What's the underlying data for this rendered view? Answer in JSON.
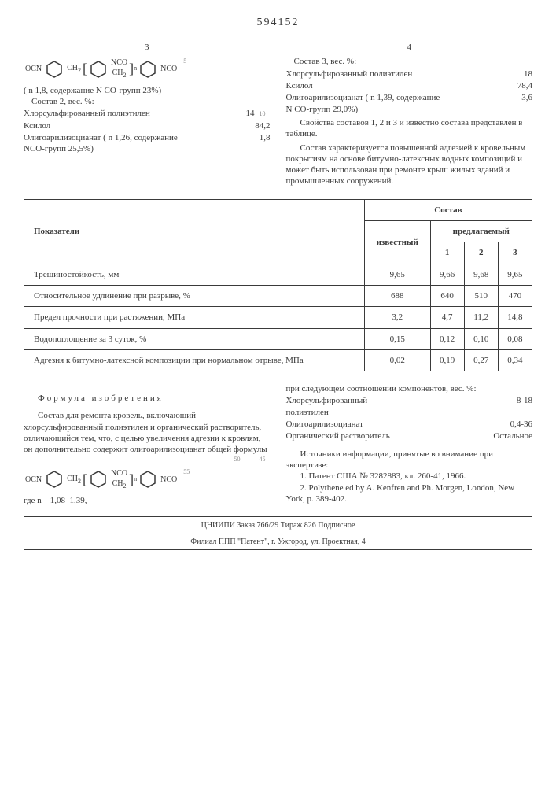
{
  "doc_number": "594152",
  "col_left_num": "3",
  "col_right_num": "4",
  "chem": {
    "OCN": "OCN",
    "CH2": "CH",
    "NCO": "NCO",
    "n_sub": "n"
  },
  "left": {
    "note1": "( n 1,8, содержание N СО-групп 23%)",
    "comp2_title": "Состав 2, вес. %:",
    "rows": [
      {
        "label": "Хлорсульфированный полиэтилен",
        "val": "14"
      },
      {
        "label": "Ксилол",
        "val": "84,2"
      },
      {
        "label": "Олигоарилизоцианат ( n 1,26, содержание NCO-групп 25,5%)",
        "val": "1,8"
      }
    ]
  },
  "right": {
    "comp3_title": "Состав 3, вес. %:",
    "rows": [
      {
        "label": "Хлорсульфированный полиэтилен",
        "val": "18"
      },
      {
        "label": "Ксилол",
        "val": "78,4"
      },
      {
        "label": "Олигоарилизоцианат ( n 1,39, содержание N СО-групп 29,0%)",
        "val": "3,6"
      }
    ],
    "para1": "Свойства составов 1, 2 и 3 и известно состава представлен в таблице.",
    "para2": "Состав характеризуется повышенной адгезией к кровельным покрытиям на основе битумно-латексных водных композиций и может быть использован при ремонте крыш жилых зданий и промышленных сооружений."
  },
  "table": {
    "h_indicator": "Показатели",
    "h_compos": "Состав",
    "h_known": "известный",
    "h_proposed": "предлагаемый",
    "h1": "1",
    "h2": "2",
    "h3": "3",
    "rows": [
      {
        "label": "Трещиностойкость, мм",
        "known": "9,65",
        "v1": "9,66",
        "v2": "9,68",
        "v3": "9,65"
      },
      {
        "label": "Относительное удлинение при разрыве, %",
        "known": "688",
        "v1": "640",
        "v2": "510",
        "v3": "470"
      },
      {
        "label": "Предел прочности при растяжении, МПа",
        "known": "3,2",
        "v1": "4,7",
        "v2": "11,2",
        "v3": "14,8"
      },
      {
        "label": "Водопоглощение за 3 суток, %",
        "known": "0,15",
        "v1": "0,12",
        "v2": "0,10",
        "v3": "0,08"
      },
      {
        "label": "Адгезия к битумно-латексной композиции при нормальном отрыве, МПа",
        "known": "0,02",
        "v1": "0,19",
        "v2": "0,27",
        "v3": "0,34"
      }
    ]
  },
  "formula_title": "Формула изобретения",
  "claim_left": "Состав для ремонта кровель, включающий хлорсульфированный полиэтилен и органический растворитель, отличающийся тем, что, с целью увеличения адгезии к кровлям, он дополнительно содержит олигоарилизоцианат общей формулы",
  "where_n": "где n – 1,08–1,39,",
  "claim_right_intro": "при следующем соотношении компонентов, вес. %:",
  "claim_right_rows": [
    {
      "label": "Хлорсульфированный полиэтилен",
      "val": "8-18"
    },
    {
      "label": "Олигоарилизоцианат",
      "val": "0,4-36"
    },
    {
      "label": "Органический растворитель",
      "val": "Остальное"
    }
  ],
  "sources_title": "Источники информации, принятые во внимание при экспертизе:",
  "sources": [
    "1. Патент США № 3282883, кл. 260-41, 1966.",
    "2. Polythene ed by A. Kenfren and Ph. Morgen, London, New York, p. 389-402."
  ],
  "line_nums": {
    "l5": "5",
    "l10": "10",
    "l45": "45",
    "l50": "50",
    "l55": "55"
  },
  "footer1": "ЦНИИПИ Заказ 766/29     Тираж 826     Подписное",
  "footer2": "Филиал ППП \"Патент\", г. Ужгород, ул. Проектная, 4"
}
